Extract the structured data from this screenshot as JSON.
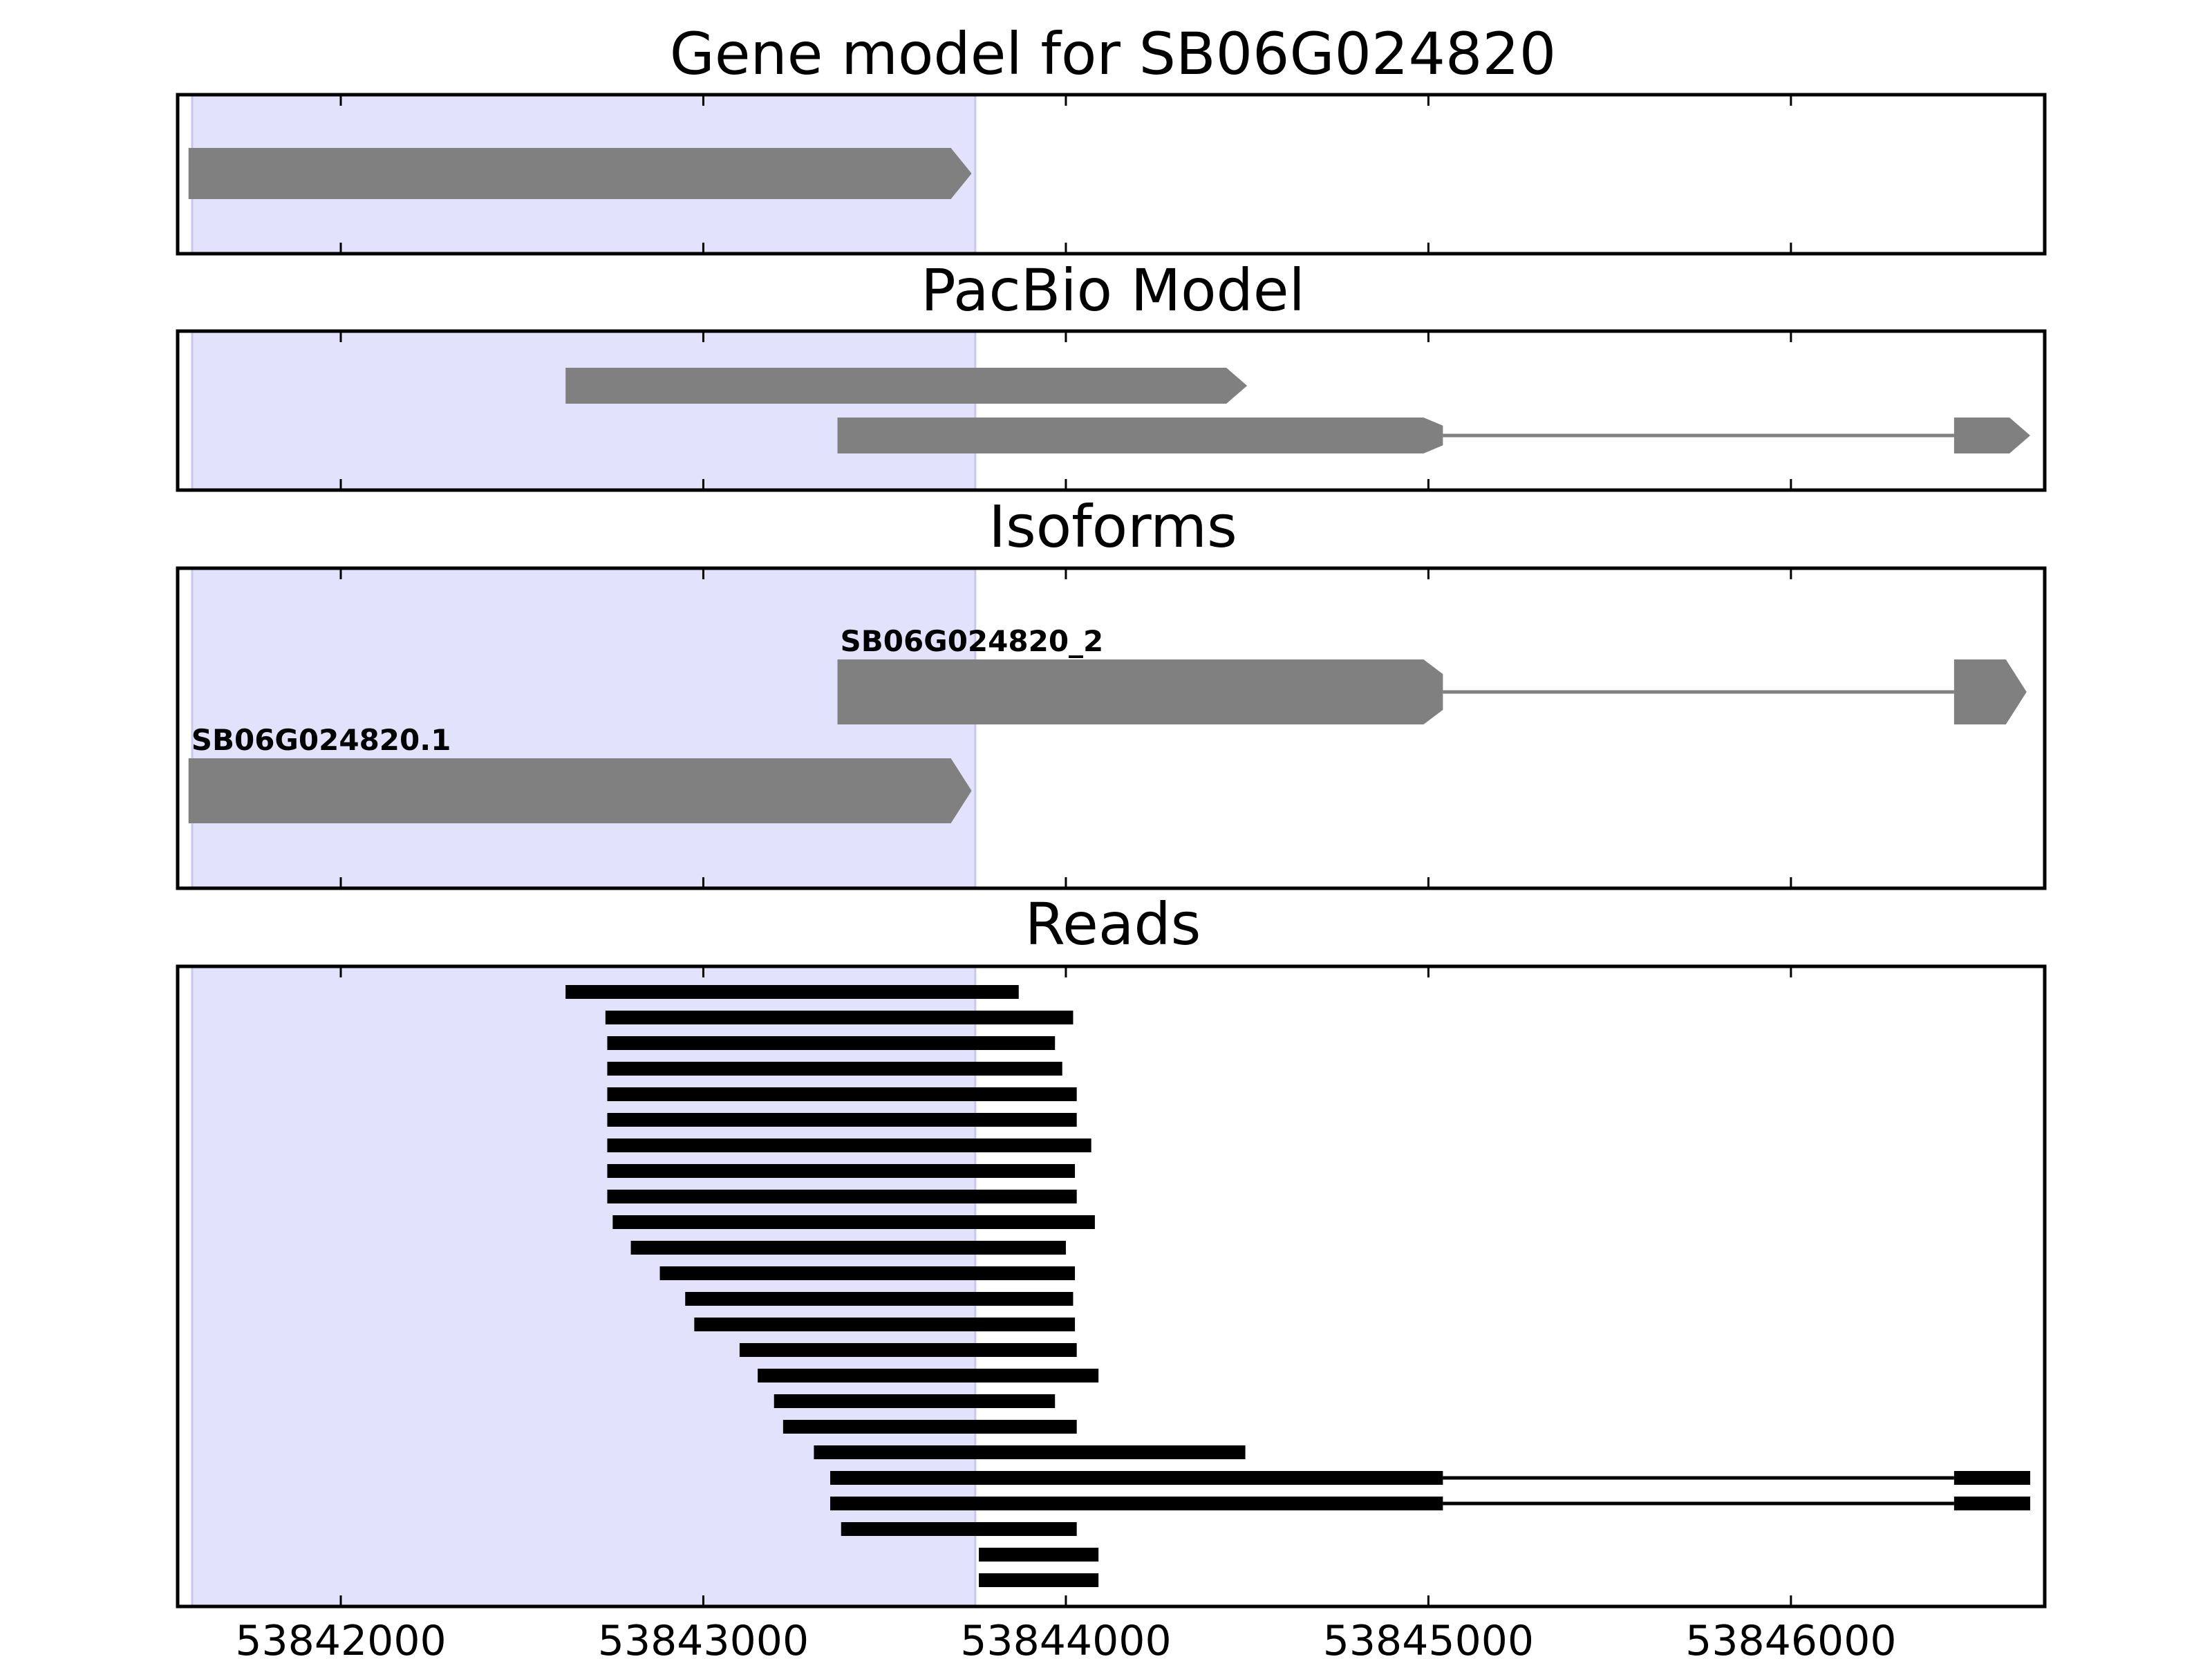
{
  "chart_data": {
    "type": "gene_track",
    "colors": {
      "highlight": "#e2e2fc",
      "feature": "#808080",
      "read": "#000000",
      "frame": "#000000"
    },
    "x_range": [
      53841550,
      53846700
    ],
    "x_ticks": [
      53842000,
      53843000,
      53844000,
      53845000,
      53846000
    ],
    "x_tick_labels": [
      "53842000",
      "53843000",
      "53844000",
      "53845000",
      "53846000"
    ],
    "highlight_region": [
      53841590,
      53843750
    ],
    "panels": [
      {
        "title": "Gene model for SB06G024820",
        "features": [
          {
            "label": "",
            "exons": [
              [
                53841580,
                53843740
              ]
            ]
          }
        ]
      },
      {
        "title": "PacBio Model",
        "features": [
          {
            "label": "",
            "exons": [
              [
                53842620,
                53844500
              ]
            ]
          },
          {
            "label": "",
            "exons": [
              [
                53843370,
                53845040
              ],
              [
                53846450,
                53846660
              ]
            ]
          }
        ]
      },
      {
        "title": "Isoforms",
        "features": [
          {
            "label": "SB06G024820_2",
            "exons": [
              [
                53843370,
                53845040
              ],
              [
                53846450,
                53846650
              ]
            ]
          },
          {
            "label": "SB06G024820.1",
            "exons": [
              [
                53841580,
                53843740
              ]
            ]
          }
        ]
      },
      {
        "title": "Reads",
        "reads": [
          [
            [
              53842620,
              53843870
            ]
          ],
          [
            [
              53842730,
              53844020
            ]
          ],
          [
            [
              53842735,
              53843970
            ]
          ],
          [
            [
              53842735,
              53843990
            ]
          ],
          [
            [
              53842735,
              53844030
            ]
          ],
          [
            [
              53842735,
              53844030
            ]
          ],
          [
            [
              53842735,
              53844070
            ]
          ],
          [
            [
              53842735,
              53844025
            ]
          ],
          [
            [
              53842735,
              53844030
            ]
          ],
          [
            [
              53842750,
              53844080
            ]
          ],
          [
            [
              53842800,
              53844000
            ]
          ],
          [
            [
              53842880,
              53844025
            ]
          ],
          [
            [
              53842950,
              53844020
            ]
          ],
          [
            [
              53842975,
              53844025
            ]
          ],
          [
            [
              53843100,
              53844030
            ]
          ],
          [
            [
              53843150,
              53844090
            ]
          ],
          [
            [
              53843195,
              53843970
            ]
          ],
          [
            [
              53843220,
              53844030
            ]
          ],
          [
            [
              53843305,
              53844495
            ]
          ],
          [
            [
              53843350,
              53845040
            ],
            [
              53846450,
              53846660
            ]
          ],
          [
            [
              53843350,
              53845040
            ],
            [
              53846450,
              53846660
            ]
          ],
          [
            [
              53843380,
              53844030
            ]
          ],
          [
            [
              53843760,
              53844090
            ]
          ],
          [
            [
              53843760,
              53844090
            ]
          ]
        ]
      }
    ]
  }
}
